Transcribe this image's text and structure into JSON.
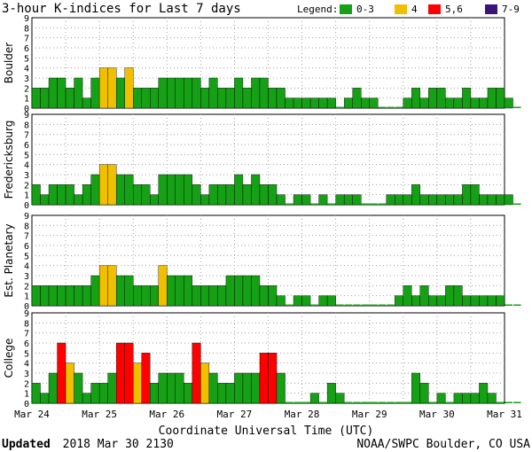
{
  "title": "3-hour K-indices for Last 7 days",
  "legend": {
    "label": "Legend:",
    "items": [
      {
        "label": "0-3",
        "color": "#16a016"
      },
      {
        "label": "4",
        "color": "#f0c000"
      },
      {
        "label": "5,6",
        "color": "#ff0000"
      },
      {
        "label": "7-9",
        "color": "#3c1478"
      }
    ]
  },
  "xlabel": "Coordinate Universal Time (UTC)",
  "x_ticks": [
    "Mar 24",
    "Mar 25",
    "Mar 26",
    "Mar 27",
    "Mar 28",
    "Mar 29",
    "Mar 30",
    "Mar 31"
  ],
  "y_ticks": [
    "0",
    "1",
    "2",
    "3",
    "4",
    "5",
    "6",
    "7",
    "8",
    "9"
  ],
  "footer": {
    "updated_label": "Updated",
    "updated_value": "2018 Mar 30 2130",
    "source": "NOAA/SWPC Boulder, CO USA"
  },
  "chart_data": [
    {
      "type": "bar",
      "name": "Boulder",
      "ylim": [
        0,
        9
      ],
      "values": [
        2,
        2,
        3,
        3,
        2,
        3,
        1,
        3,
        4,
        4,
        3,
        4,
        2,
        2,
        2,
        3,
        3,
        3,
        3,
        3,
        2,
        3,
        2,
        2,
        3,
        2,
        3,
        3,
        2,
        2,
        1,
        1,
        1,
        1,
        1,
        1,
        0,
        1,
        2,
        1,
        1,
        0,
        0,
        0,
        1,
        2,
        1,
        2,
        2,
        1,
        1,
        2,
        1,
        1,
        2,
        2,
        1,
        0
      ]
    },
    {
      "type": "bar",
      "name": "Fredericksburg",
      "ylim": [
        0,
        9
      ],
      "values": [
        2,
        1,
        2,
        2,
        2,
        1,
        2,
        3,
        4,
        4,
        3,
        3,
        2,
        2,
        1,
        3,
        3,
        3,
        3,
        2,
        1,
        2,
        2,
        2,
        3,
        2,
        3,
        2,
        2,
        1,
        0,
        1,
        1,
        0,
        1,
        0,
        1,
        1,
        1,
        0,
        0,
        0,
        1,
        1,
        1,
        2,
        1,
        1,
        1,
        1,
        1,
        2,
        2,
        1,
        1,
        1,
        1,
        0
      ]
    },
    {
      "type": "bar",
      "name": "Est. Planetary",
      "ylim": [
        0,
        9
      ],
      "values": [
        2,
        2,
        2,
        2,
        2,
        2,
        2,
        3,
        4,
        4,
        3,
        3,
        2,
        2,
        2,
        4,
        3,
        3,
        3,
        2,
        2,
        2,
        2,
        3,
        3,
        3,
        3,
        2,
        2,
        1,
        0,
        1,
        1,
        0,
        1,
        1,
        0,
        0,
        0,
        0,
        0,
        0,
        0,
        1,
        2,
        1,
        2,
        1,
        1,
        2,
        2,
        1,
        1,
        1,
        1,
        1,
        0,
        0
      ]
    },
    {
      "type": "bar",
      "name": "College",
      "ylim": [
        0,
        9
      ],
      "values": [
        2,
        1,
        3,
        6,
        4,
        3,
        1,
        2,
        2,
        3,
        6,
        6,
        4,
        5,
        2,
        3,
        3,
        3,
        2,
        6,
        4,
        3,
        2,
        2,
        3,
        3,
        3,
        5,
        5,
        3,
        0,
        0,
        0,
        1,
        0,
        2,
        1,
        0,
        0,
        0,
        0,
        0,
        0,
        0,
        0,
        3,
        2,
        0,
        1,
        0,
        1,
        1,
        1,
        2,
        1,
        0,
        0,
        0
      ]
    }
  ]
}
